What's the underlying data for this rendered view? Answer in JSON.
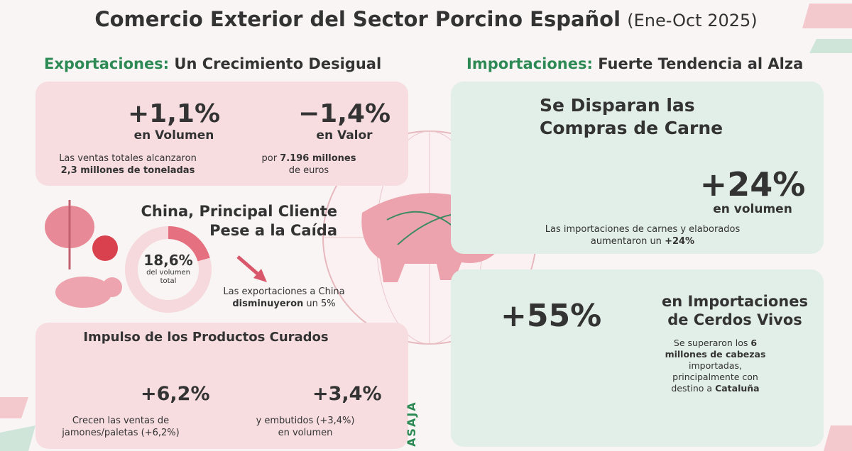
{
  "header": {
    "title": "Comercio Exterior del Sector Porcino Español",
    "period": "(Ene-Oct 2025)"
  },
  "exports": {
    "heading_lead": "Exportaciones:",
    "heading": "Un Crecimiento Desigual",
    "volume": {
      "value": "+1,1%",
      "label": "en Volumen",
      "note": "Las ventas totales alcanzaron",
      "note_bold": "2,3 millones de toneladas"
    },
    "worth": {
      "value": "−1,4%",
      "label": "en Valor",
      "note_lead": "por",
      "note_bold": "7.196 millones",
      "note": "de euros"
    },
    "china": {
      "title_1": "China, Principal Cliente",
      "title_2": "Pese a la Caída",
      "share": "18,6%",
      "share_label_1": "del volumen",
      "share_label_2": "total",
      "note": "Las exportaciones a China",
      "note_bold": "disminuyeron",
      "note_end": "un 5%"
    },
    "cured": {
      "title": "Impulso de los Productos Curados",
      "ham": {
        "value": "+6,2%",
        "note_1": "Crecen las ventas de",
        "note_2": "jamones/paletas (+6,2%)"
      },
      "sausage": {
        "value": "+3,4%",
        "note_1": "y embutidos (+3,4%)",
        "note_2": "en volumen"
      }
    }
  },
  "imports": {
    "heading_lead": "Importaciones:",
    "heading": "Fuerte Tendencia al Alza",
    "meat": {
      "title_1": "Se Disparan las",
      "title_2": "Compras de Carne",
      "value": "+24%",
      "label": "en volumen",
      "note_1": "Las importaciones de carnes y elaborados",
      "note_2": "aumentaron un",
      "note_bold": "+24%"
    },
    "live": {
      "value": "+55%",
      "title_1": "en Importaciones",
      "title_2": "de Cerdos Vivos",
      "note_lead": "Se superaron los",
      "note_bold": "6 millones de cabezas",
      "note_1": "importadas,",
      "note_2": "principalmente con",
      "note_3": "destino a",
      "note_bold_2": "Cataluña"
    }
  },
  "brand": "ASAJA"
}
